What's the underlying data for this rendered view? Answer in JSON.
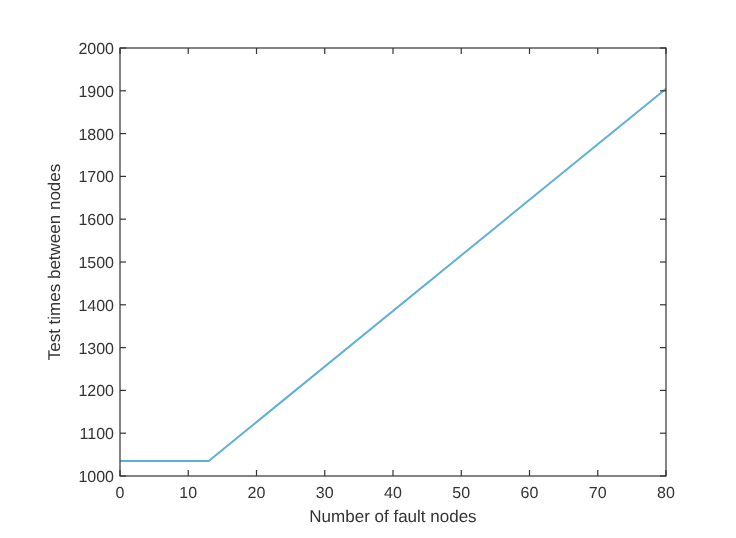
{
  "chart_data": {
    "type": "line",
    "xlabel": "Number of fault nodes",
    "ylabel": "Test times between nodes",
    "x": [
      0,
      13,
      80
    ],
    "series": [
      {
        "color": "#5fb0d6",
        "values": [
          1035,
          1035,
          1905
        ]
      }
    ],
    "xlim": [
      0,
      80
    ],
    "xticks": [
      0,
      10,
      20,
      30,
      40,
      50,
      60,
      70,
      80
    ],
    "ylim": [
      1000,
      2000
    ],
    "yticks": [
      1000,
      1100,
      1200,
      1300,
      1400,
      1500,
      1600,
      1700,
      1800,
      1900,
      2000
    ],
    "grid": false,
    "marker": "none",
    "line_style": "solid"
  }
}
